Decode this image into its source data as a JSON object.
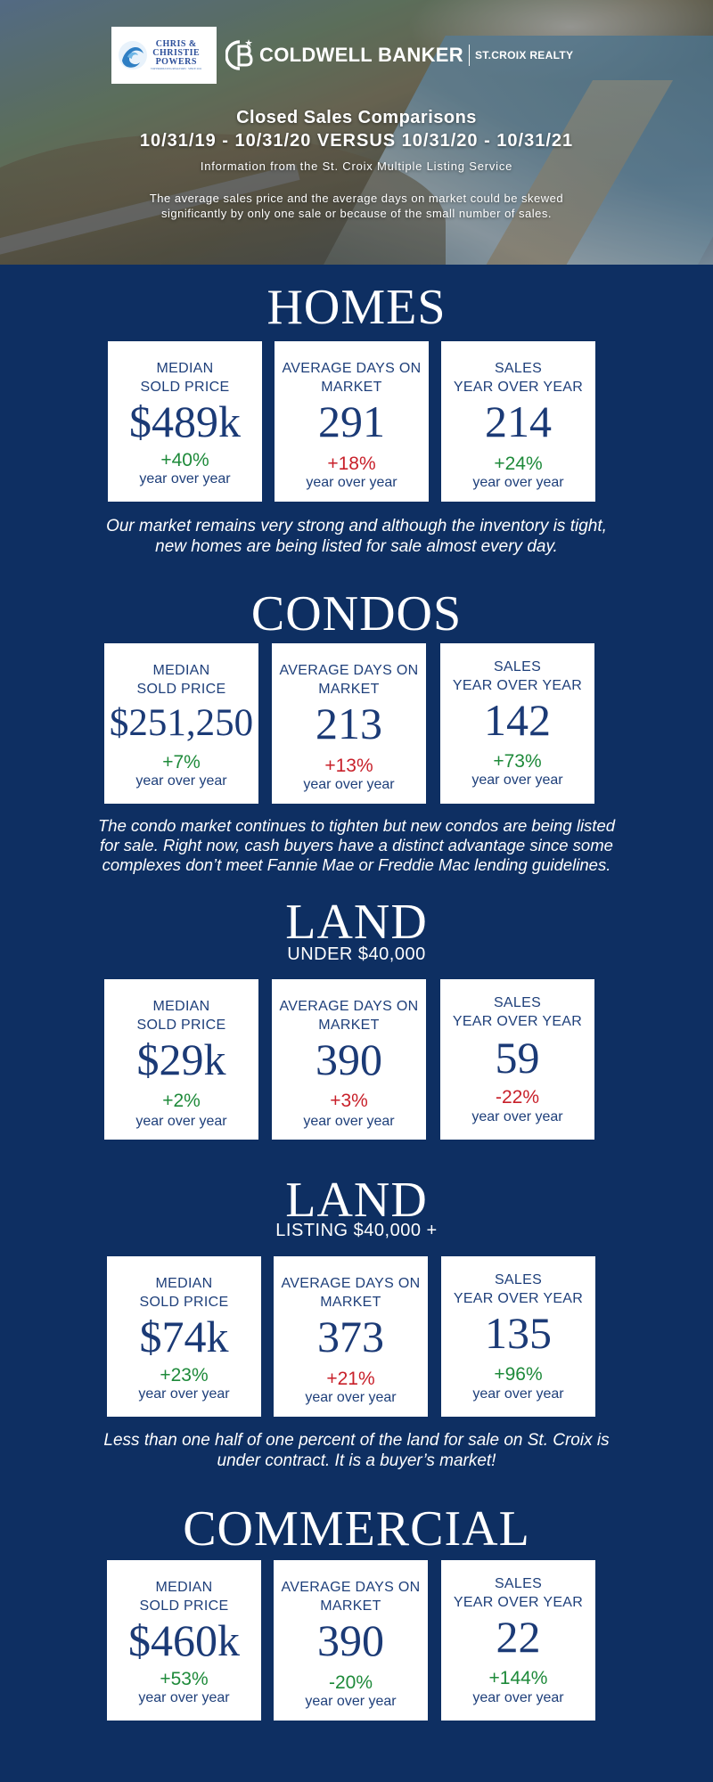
{
  "header": {
    "partner_logo": {
      "lines": [
        "CHRIS &",
        "CHRISTIE",
        "POWERS"
      ],
      "tagline": "TOP PRODUCING REALTORS · SINCE 2011"
    },
    "brand_name": "COLDWELL BANKER",
    "brand_sub": "ST.CROIX REALTY",
    "title": "Closed Sales Comparisons",
    "date_range": "10/31/19 - 10/31/20 VERSUS 10/31/20 - 10/31/21",
    "source": "Information from the St. Croix Multiple Listing Service",
    "disclaimer_line1": "The average sales price and the average days on market could be skewed",
    "disclaimer_line2": "significantly by only one sale or because of the small number of sales."
  },
  "colors": {
    "background": "#0e2f62",
    "card": "#ffffff",
    "text_navy": "#1e3f7a",
    "positive": "#1e8a3a",
    "negative": "#c8202a"
  },
  "sections": {
    "homes": {
      "title": "HOMES",
      "cards": [
        {
          "label1": "MEDIAN",
          "label2": "SOLD PRICE",
          "value": "$489k",
          "change": "+40%",
          "note": "year over year"
        },
        {
          "label1": "AVERAGE DAYS ON",
          "label2": "MARKET",
          "value": "291",
          "change": "+18%",
          "note": "year over year"
        },
        {
          "label1": "SALES",
          "label2": "YEAR OVER YEAR",
          "value": "214",
          "change": "+24%",
          "note": "year over year"
        }
      ],
      "comment_line1": "Our market remains very strong and although the inventory is tight,",
      "comment_line2": "new homes are being listed for sale almost every day."
    },
    "condos": {
      "title": "CONDOS",
      "cards": [
        {
          "label1": "MEDIAN",
          "label2": "SOLD PRICE",
          "value": "$251,250",
          "change": "+7%",
          "note": "year over year"
        },
        {
          "label1": "AVERAGE DAYS ON",
          "label2": "MARKET",
          "value": "213",
          "change": "+13%",
          "note": "year over year"
        },
        {
          "label1": "SALES",
          "label2": "YEAR OVER YEAR",
          "value": "142",
          "change": "+73%",
          "note": "year over year"
        }
      ],
      "comment_line1": "The condo market continues to tighten but new condos are being listed",
      "comment_line2": "for sale. Right now, cash buyers have a distinct advantage since some",
      "comment_line3": "complexes don’t meet Fannie Mae or Freddie Mac lending guidelines."
    },
    "land_under": {
      "title": "LAND",
      "subtitle": "UNDER $40,000",
      "cards": [
        {
          "label1": "MEDIAN",
          "label2": "SOLD PRICE",
          "value": "$29k",
          "change": "+2%",
          "note": "year over year"
        },
        {
          "label1": "AVERAGE DAYS ON",
          "label2": "MARKET",
          "value": "390",
          "change": "+3%",
          "note": "year over year"
        },
        {
          "label1": "SALES",
          "label2": "YEAR OVER YEAR",
          "value": "59",
          "change": "-22%",
          "note": "year over year"
        }
      ]
    },
    "land_over": {
      "title": "LAND",
      "subtitle": "LISTING $40,000 +",
      "cards": [
        {
          "label1": "MEDIAN",
          "label2": "SOLD PRICE",
          "value": "$74k",
          "change": "+23%",
          "note": "year over year"
        },
        {
          "label1": "AVERAGE DAYS ON",
          "label2": "MARKET",
          "value": "373",
          "change": "+21%",
          "note": "year over year"
        },
        {
          "label1": "SALES",
          "label2": "YEAR OVER YEAR",
          "value": "135",
          "change": "+96%",
          "note": "year over year"
        }
      ],
      "comment_line1": "Less than one half of one percent of the land for sale on St. Croix is",
      "comment_line2": "under contract. It is a buyer’s market!"
    },
    "commercial": {
      "title": "COMMERCIAL",
      "cards": [
        {
          "label1": "MEDIAN",
          "label2": "SOLD PRICE",
          "value": "$460k",
          "change": "+53%",
          "note": "year over year"
        },
        {
          "label1": "AVERAGE DAYS ON",
          "label2": "MARKET",
          "value": "390",
          "change": "-20%",
          "note": "year over year"
        },
        {
          "label1": "SALES",
          "label2": "YEAR OVER YEAR",
          "value": "22",
          "change": "+144%",
          "note": "year over year"
        }
      ]
    }
  }
}
